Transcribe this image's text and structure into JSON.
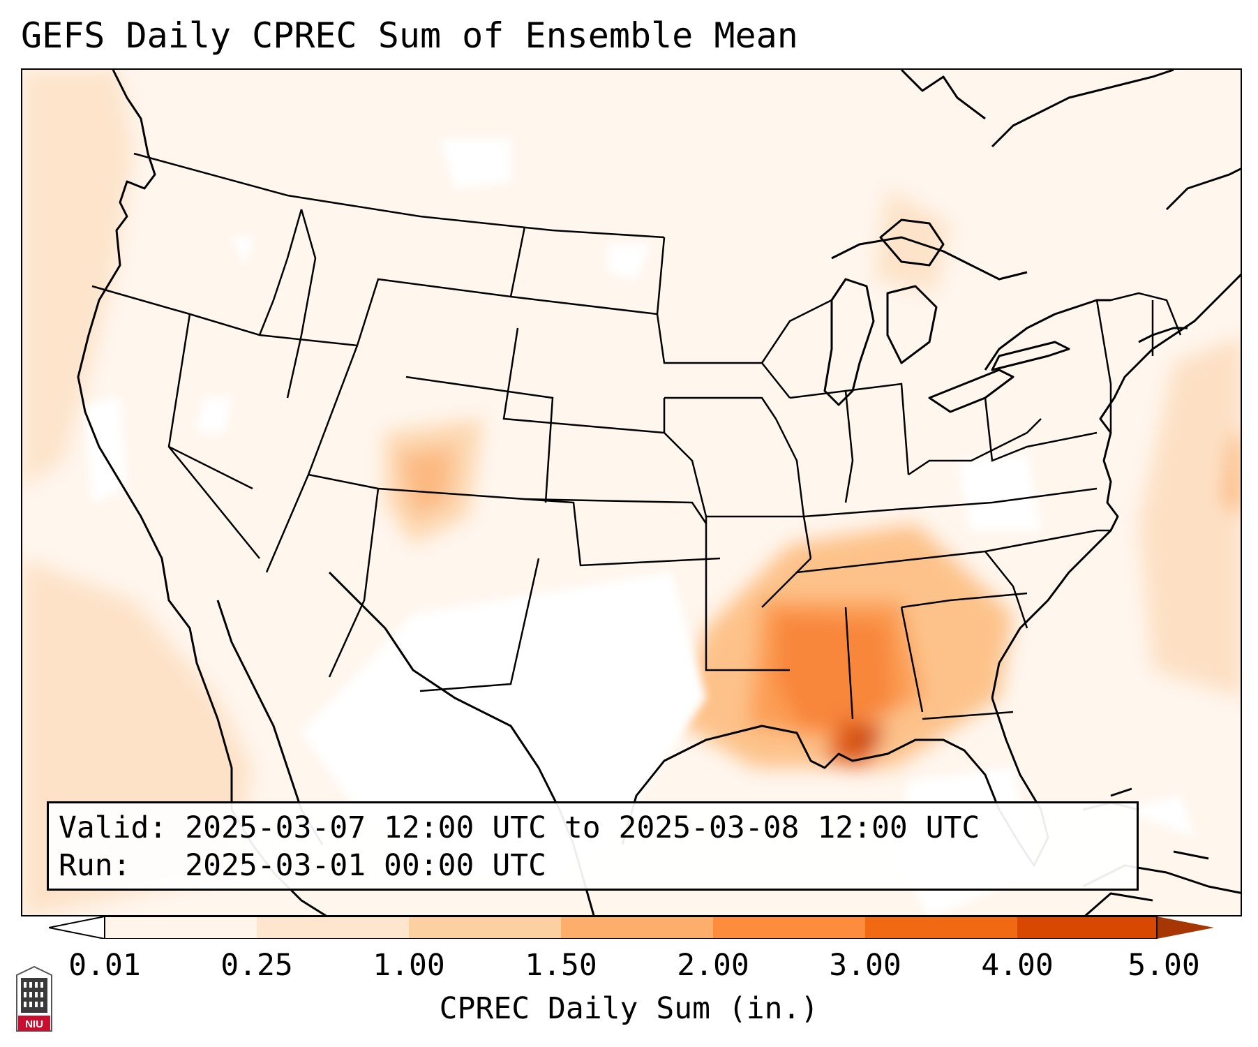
{
  "title": "GEFS Daily CPREC Sum of Ensemble Mean",
  "info": {
    "valid_label": "Valid:",
    "valid_value": "2025-03-07 12:00 UTC to 2025-03-08 12:00 UTC",
    "run_label": "Run:",
    "run_value": "2025-03-01 00:00 UTC"
  },
  "colorbar": {
    "label": "CPREC Daily Sum (in.)",
    "ticks": [
      "0.01",
      "0.25",
      "1.00",
      "1.50",
      "2.00",
      "3.00",
      "4.00",
      "5.00"
    ],
    "colors": [
      "#fff5eb",
      "#fee6ce",
      "#fdd0a2",
      "#fdae6b",
      "#fd8d3c",
      "#f16913",
      "#d94801",
      "#a63603"
    ]
  },
  "logo": {
    "text": "NIU",
    "icon": "university-tower-icon"
  }
}
